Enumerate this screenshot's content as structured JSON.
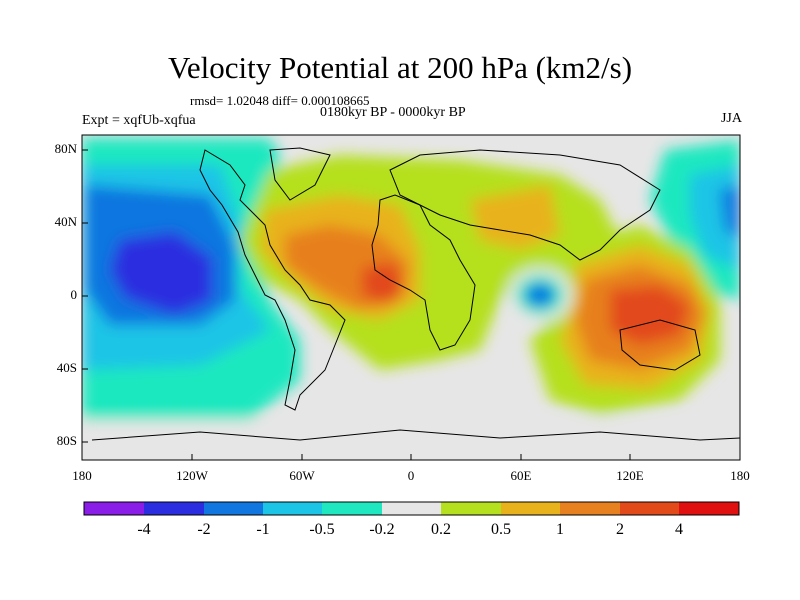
{
  "title": "Velocity Potential at 200 hPa (km2/s)",
  "stats": "rmsd= 1.02048 diff= 0.000108665",
  "period": "0180kyr BP - 0000kyr BP",
  "experiment": "Expt = xqfUb-xqfua",
  "season": "JJA",
  "map": {
    "lat_labels": [
      "80N",
      "40N",
      "0",
      "40S",
      "80S"
    ],
    "lon_labels": [
      "180",
      "120W",
      "60W",
      "0",
      "60E",
      "120E",
      "180"
    ]
  },
  "colorbar": {
    "labels": [
      "-4",
      "-2",
      "-1",
      "-0.5",
      "-0.2",
      "0.2",
      "0.5",
      "1",
      "2",
      "4"
    ],
    "colors": [
      "#8a1de8",
      "#2a2ee0",
      "#1176e0",
      "#1cc4e6",
      "#1fe8c0",
      "#e6e6e6",
      "#b5e01f",
      "#e8b21c",
      "#e7801f",
      "#e24a1a",
      "#e01010"
    ]
  }
}
